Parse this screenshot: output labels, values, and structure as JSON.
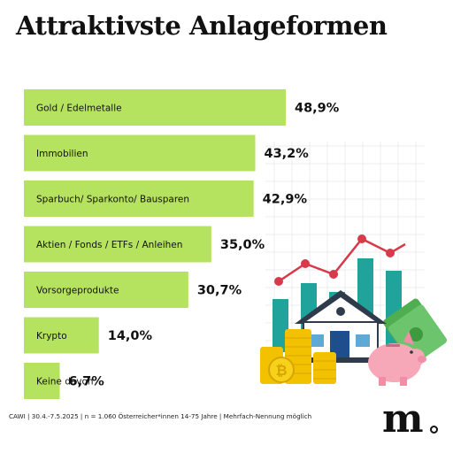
{
  "title": "Attraktivste Anlageformen",
  "footer": "CAWI | 30.4.-7.5.2025 | n = 1.060 Österreicher*innen 14-75 Jahre | Mehrfach-Nennung möglich",
  "logo": "m",
  "colors": {
    "bar": "#b6e35f",
    "text": "#111111",
    "teal": "#1fa39a",
    "line": "#d9394a",
    "gold": "#f2c200",
    "pink": "#f6a8b9",
    "money": "#5cb85c"
  },
  "icons": [
    "line-chart-icon",
    "house-icon",
    "gold-coins-icon",
    "piggy-bank-icon",
    "money-stack-icon",
    "bitcoin-icon"
  ],
  "chart_data": {
    "type": "bar",
    "orientation": "horizontal",
    "categories": [
      "Gold / Edelmetalle",
      "Immobilien",
      "Sparbuch/ Sparkonto/ Bausparen",
      "Aktien / Fonds / ETFs / Anleihen",
      "Vorsorgeprodukte",
      "Krypto",
      "Keine davon"
    ],
    "values": [
      48.9,
      43.2,
      42.9,
      35.0,
      30.7,
      14.0,
      6.7
    ],
    "value_labels": [
      "48,9%",
      "43,2%",
      "42,9%",
      "35,0%",
      "30,7%",
      "14,0%",
      "6,7%"
    ],
    "unit": "%",
    "xlim": [
      0,
      50
    ],
    "grid": false,
    "legend": "none"
  }
}
